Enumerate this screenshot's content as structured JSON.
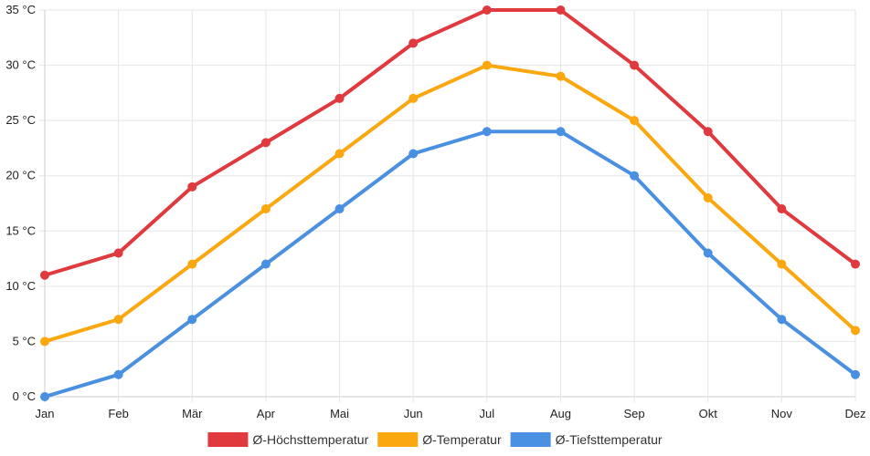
{
  "chart_data": {
    "type": "line",
    "title": "",
    "xlabel": "",
    "ylabel": "",
    "categories": [
      "Jan",
      "Feb",
      "Mär",
      "Apr",
      "Mai",
      "Jun",
      "Jul",
      "Aug",
      "Sep",
      "Okt",
      "Nov",
      "Dez"
    ],
    "y_ticks": [
      0,
      5,
      10,
      15,
      20,
      25,
      30,
      35
    ],
    "y_unit": " °C",
    "ylim": [
      0,
      35
    ],
    "grid": true,
    "legend_position": "bottom-center",
    "series": [
      {
        "name": "Ø-Höchsttemperatur",
        "color": "#e0393e",
        "values": [
          11,
          13,
          19,
          23,
          27,
          32,
          35,
          35,
          30,
          24,
          17,
          12
        ]
      },
      {
        "name": "Ø-Temperatur",
        "color": "#fba70f",
        "values": [
          5,
          7,
          12,
          17,
          22,
          27,
          30,
          29,
          25,
          18,
          12,
          6
        ]
      },
      {
        "name": "Ø-Tiefsttemperatur",
        "color": "#4a90e2",
        "values": [
          0,
          2,
          7,
          12,
          17,
          22,
          24,
          24,
          20,
          13,
          7,
          2
        ]
      }
    ]
  }
}
